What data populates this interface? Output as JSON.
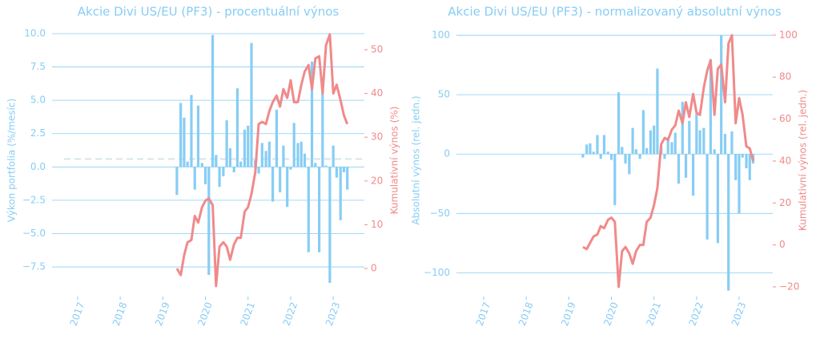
{
  "chart_data": [
    {
      "type": "bar-line",
      "title": "Akcie Divi US/EU (PF3) - procentuální výnos",
      "ylabel": "Výkon portfolia (%/mesíc)",
      "y2label": "Kumulativní výnos (%)",
      "x": [
        2019.33,
        2019.42,
        2019.5,
        2019.58,
        2019.67,
        2019.75,
        2019.83,
        2019.92,
        2020,
        2020.08,
        2020.17,
        2020.25,
        2020.33,
        2020.42,
        2020.5,
        2020.58,
        2020.67,
        2020.75,
        2020.83,
        2020.92,
        2021,
        2021.08,
        2021.17,
        2021.25,
        2021.33,
        2021.42,
        2021.5,
        2021.58,
        2021.67,
        2021.75,
        2021.83,
        2021.92,
        2022,
        2022.08,
        2022.17,
        2022.25,
        2022.33,
        2022.42,
        2022.5,
        2022.58,
        2022.67,
        2022.75,
        2022.83,
        2022.92,
        2023,
        2023.08,
        2023.17,
        2023.25,
        2023.33
      ],
      "xlim": [
        2016.4,
        2023.73
      ],
      "xticks": [
        2017,
        2018,
        2019,
        2020,
        2021,
        2022,
        2023
      ],
      "ylim": [
        -9.72,
        10.72
      ],
      "yticks": [
        -7.5,
        -5.0,
        -2.5,
        0.0,
        2.5,
        5.0,
        7.5,
        10.0
      ],
      "yticks_labels": [
        "−7.5",
        "−5.0",
        "−2.5",
        "0.0",
        "2.5",
        "5.0",
        "7.5",
        "10.0"
      ],
      "y2lim": [
        -6.4,
        55.86
      ],
      "y2ticks": [
        0,
        10,
        20,
        30,
        40,
        50
      ],
      "hline": 0.6,
      "hline_color": "#d6e4ea",
      "grid": true,
      "series": [
        {
          "name": "bar",
          "color": "#87cdf4",
          "values": [
            -2.1,
            4.8,
            3.7,
            0.4,
            5.4,
            -1.7,
            4.6,
            0.3,
            -1.3,
            -8.1,
            9.9,
            0.9,
            -1.5,
            -0.7,
            3.5,
            1.4,
            -0.4,
            5.9,
            0.4,
            2.8,
            3.1,
            9.3,
            0.5,
            -0.5,
            1.8,
            1.2,
            1.9,
            -2.6,
            4.3,
            -1.9,
            1.6,
            -3.0,
            -0.2,
            3.3,
            1.8,
            1.9,
            1.0,
            -6.4,
            7.9,
            0.3,
            -6.4,
            6.7,
            0.1,
            -8.7,
            1.6,
            -0.8,
            -4.0,
            -0.4,
            -1.7
          ]
        },
        {
          "name": "line",
          "axis": "y2",
          "color": "#f08a8a",
          "values": [
            0,
            -1.5,
            3,
            6,
            6.5,
            12,
            10.5,
            14,
            15.5,
            16,
            14.5,
            -4,
            5,
            6,
            5,
            2,
            5.5,
            7,
            7,
            13,
            14,
            17,
            22,
            33,
            33.5,
            33,
            36,
            38,
            39.5,
            37,
            41,
            39,
            43,
            38,
            38,
            42,
            45,
            46.5,
            41,
            48,
            48.5,
            40,
            51,
            53.5,
            40,
            42,
            38.5,
            35,
            33
          ]
        }
      ]
    },
    {
      "type": "bar-line",
      "title": "Akcie Divi US/EU (PF3) - normalizovaný absolutní výnos",
      "ylabel": "Absolutní výnos (rel. jedn.)",
      "y2label": "Kumulativní výnos (rel. jedn.)",
      "x": [
        2019.33,
        2019.42,
        2019.5,
        2019.58,
        2019.67,
        2019.75,
        2019.83,
        2019.92,
        2020,
        2020.08,
        2020.17,
        2020.25,
        2020.33,
        2020.42,
        2020.5,
        2020.58,
        2020.67,
        2020.75,
        2020.83,
        2020.92,
        2021,
        2021.08,
        2021.17,
        2021.25,
        2021.33,
        2021.42,
        2021.5,
        2021.58,
        2021.67,
        2021.75,
        2021.83,
        2021.92,
        2022,
        2022.08,
        2022.17,
        2022.25,
        2022.33,
        2022.42,
        2022.5,
        2022.58,
        2022.67,
        2022.75,
        2022.83,
        2022.92,
        2023,
        2023.08,
        2023.17,
        2023.25,
        2023.33
      ],
      "xlim": [
        2016.36,
        2023.79
      ],
      "xticks": [
        2017,
        2018,
        2019,
        2020,
        2021,
        2022,
        2023
      ],
      "ylim": [
        -120,
        109.5
      ],
      "yticks": [
        -100,
        -50,
        0,
        50,
        100
      ],
      "yticks_labels": [
        "−100",
        "−50",
        "0",
        "50",
        "100"
      ],
      "y2lim": [
        -24.6,
        105.3
      ],
      "y2ticks": [
        -20,
        0,
        20,
        40,
        60,
        80,
        100
      ],
      "y2ticks_labels": [
        "−20",
        "0",
        "20",
        "40",
        "60",
        "80",
        "100"
      ],
      "grid": true,
      "series": [
        {
          "name": "bar",
          "color": "#87cdf4",
          "values": [
            -3,
            8,
            9,
            2,
            16,
            -4,
            16,
            2,
            -5,
            -43,
            52,
            6,
            -8,
            -17,
            22,
            4,
            -4,
            37,
            5,
            20,
            24,
            72,
            6,
            -4,
            14,
            10,
            18,
            -25,
            44,
            -20,
            28,
            -35,
            34,
            20,
            22,
            -72,
            80,
            4,
            -75,
            100,
            17,
            -115,
            19,
            -22,
            -50,
            -3,
            -12,
            -22,
            -8
          ]
        },
        {
          "name": "line",
          "axis": "y2",
          "color": "#f08a8a",
          "values": [
            -1,
            -2,
            1,
            4,
            5,
            9,
            8,
            12,
            13,
            11,
            -20,
            -3,
            -1,
            -4,
            -9,
            -3,
            0,
            0,
            11,
            13,
            19,
            27,
            48,
            51,
            50,
            55,
            57,
            64,
            58,
            68,
            61,
            72,
            63,
            62,
            75,
            83,
            88,
            62,
            84,
            86,
            68,
            96,
            100,
            58,
            70,
            62,
            47,
            46,
            40
          ]
        }
      ]
    }
  ]
}
